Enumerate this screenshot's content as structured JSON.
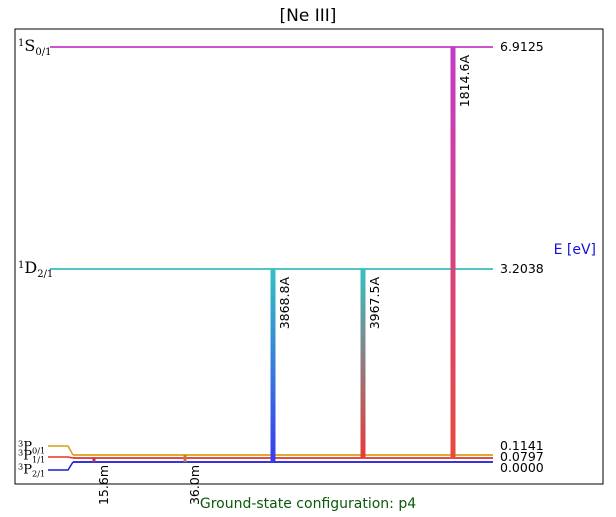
{
  "title": "[Ne III]",
  "axis_label": "E [eV]",
  "footer": "Ground-state configuration: p4",
  "levels": [
    {
      "id": "1S0",
      "term": "S",
      "mult": "1",
      "j": "0/1",
      "energy": 6.9125,
      "energy_label": "6.9125",
      "color": "#c43bc8"
    },
    {
      "id": "1D2",
      "term": "D",
      "mult": "1",
      "j": "2/1",
      "energy": 3.2038,
      "energy_label": "3.2038",
      "color": "#36bfc3"
    },
    {
      "id": "3P0",
      "term": "P",
      "mult": "3",
      "j": "0/1",
      "energy": 0.1141,
      "energy_label": "0.1141",
      "color": "#d4a21a"
    },
    {
      "id": "3P1",
      "term": "P",
      "mult": "3",
      "j": "1/1",
      "energy": 0.0797,
      "energy_label": "0.0797",
      "color": "#e8302a"
    },
    {
      "id": "3P2",
      "term": "P",
      "mult": "3",
      "j": "2/1",
      "energy": 0.0,
      "energy_label": "0.0000",
      "color": "#1a1ad0"
    }
  ],
  "transitions": [
    {
      "label": "3868.8A",
      "upper": "1D2",
      "lower": "3P2",
      "top_color": "#36bfc3",
      "bottom_color": "#3a3af0"
    },
    {
      "label": "3967.5A",
      "upper": "1D2",
      "lower": "3P1",
      "top_color": "#36bfc3",
      "bottom_color": "#e83a3a"
    },
    {
      "label": "1814.6A",
      "upper": "1S0",
      "lower": "3P1",
      "top_color": "#c43bc8",
      "bottom_color": "#e84a3a"
    }
  ],
  "ir_transitions": [
    {
      "label": "15.6m",
      "upper": "3P1",
      "lower": "3P2"
    },
    {
      "label": "36.0m",
      "upper": "3P0",
      "lower": "3P2"
    }
  ]
}
